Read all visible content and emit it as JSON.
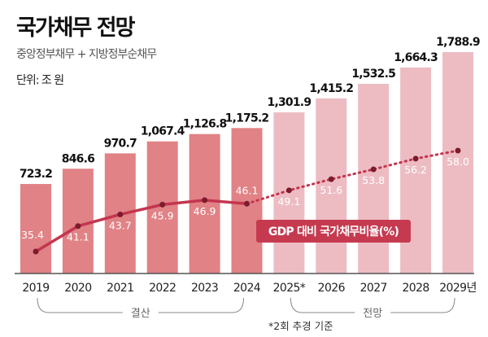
{
  "header": {
    "title": "국가채무 전망",
    "subtitle": "중앙정부채무 + 지방정부순채무",
    "unit": "단위: 조 원"
  },
  "chart_data": {
    "type": "bar",
    "title": "국가채무 전망",
    "categories": [
      "2019",
      "2020",
      "2021",
      "2022",
      "2023",
      "2024",
      "2025*",
      "2026",
      "2027",
      "2028",
      "2029년"
    ],
    "series": [
      {
        "name": "국가채무",
        "values": [
          723.2,
          846.6,
          970.7,
          1067.4,
          1126.8,
          1175.2,
          1301.9,
          1415.2,
          1532.5,
          1664.3,
          1788.9
        ]
      },
      {
        "name": "GDP 대비 국가채무비율(%)",
        "type": "line",
        "values": [
          35.4,
          41.1,
          43.7,
          45.9,
          46.9,
          46.1,
          49.1,
          51.6,
          53.8,
          56.2,
          58.0
        ]
      }
    ],
    "value_labels": [
      "723.2",
      "846.6",
      "970.7",
      "1,067.4",
      "1,126.8",
      "1,175.2",
      "1,301.9",
      "1,415.2",
      "1,532.5",
      "1,664.3",
      "1,788.9"
    ],
    "ratio_labels": [
      "35.4",
      "41.1",
      "43.7",
      "45.9",
      "46.9",
      "46.1",
      "49.1",
      "51.6",
      "53.8",
      "56.2",
      "58.0"
    ],
    "groups": [
      {
        "label": "결산",
        "from": 0,
        "to": 5
      },
      {
        "label": "전망",
        "from": 6,
        "to": 10
      }
    ],
    "legend": "GDP 대비 국가채무비율(%)",
    "note": "*2회 추경 기준",
    "ylim": [
      0,
      1800
    ],
    "colors": {
      "actual_bar": "#e08286",
      "forecast_bar": "#edbcc3",
      "line": "#c4354f",
      "dot": "#7a1c2c",
      "legend_bg": "#c63a50"
    }
  }
}
